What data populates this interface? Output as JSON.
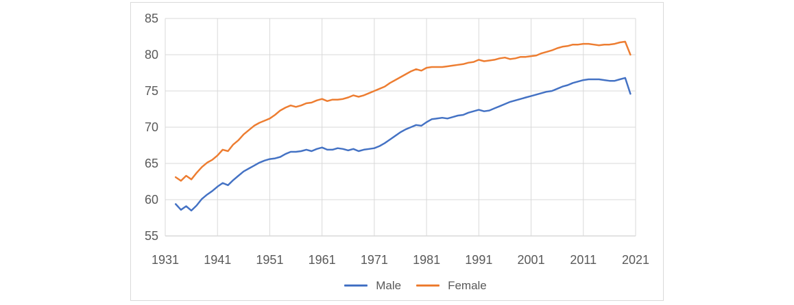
{
  "chart_data": {
    "type": "line",
    "title": "",
    "xlabel": "",
    "ylabel": "",
    "xlim": [
      1931,
      2021
    ],
    "ylim": [
      55,
      85
    ],
    "x_ticks": [
      1931,
      1941,
      1951,
      1961,
      1971,
      1981,
      1991,
      2001,
      2011,
      2021
    ],
    "y_ticks": [
      55,
      60,
      65,
      70,
      75,
      80,
      85
    ],
    "grid": true,
    "legend_position": "bottom",
    "years": [
      1933,
      1934,
      1935,
      1936,
      1937,
      1938,
      1939,
      1940,
      1941,
      1942,
      1943,
      1944,
      1945,
      1946,
      1947,
      1948,
      1949,
      1950,
      1951,
      1952,
      1953,
      1954,
      1955,
      1956,
      1957,
      1958,
      1959,
      1960,
      1961,
      1962,
      1963,
      1964,
      1965,
      1966,
      1967,
      1968,
      1969,
      1970,
      1971,
      1972,
      1973,
      1974,
      1975,
      1976,
      1977,
      1978,
      1979,
      1980,
      1981,
      1982,
      1983,
      1984,
      1985,
      1986,
      1987,
      1988,
      1989,
      1990,
      1991,
      1992,
      1993,
      1994,
      1995,
      1996,
      1997,
      1998,
      1999,
      2000,
      2001,
      2002,
      2003,
      2004,
      2005,
      2006,
      2007,
      2008,
      2009,
      2010,
      2011,
      2012,
      2013,
      2014,
      2015,
      2016,
      2017,
      2018,
      2019,
      2020
    ],
    "series": [
      {
        "name": "Male",
        "color": "#4472C4",
        "values": [
          59.4,
          58.6,
          59.1,
          58.5,
          59.2,
          60.1,
          60.7,
          61.2,
          61.8,
          62.3,
          62.0,
          62.7,
          63.3,
          63.9,
          64.3,
          64.7,
          65.1,
          65.4,
          65.6,
          65.7,
          65.9,
          66.3,
          66.6,
          66.6,
          66.7,
          66.9,
          66.7,
          67.0,
          67.2,
          66.9,
          66.9,
          67.1,
          67.0,
          66.8,
          67.0,
          66.7,
          66.9,
          67.0,
          67.1,
          67.4,
          67.8,
          68.3,
          68.8,
          69.3,
          69.7,
          70.0,
          70.3,
          70.2,
          70.7,
          71.1,
          71.2,
          71.3,
          71.2,
          71.4,
          71.6,
          71.7,
          72.0,
          72.2,
          72.4,
          72.2,
          72.3,
          72.6,
          72.9,
          73.2,
          73.5,
          73.7,
          73.9,
          74.1,
          74.3,
          74.5,
          74.7,
          74.9,
          75.0,
          75.3,
          75.6,
          75.8,
          76.1,
          76.3,
          76.5,
          76.6,
          76.6,
          76.6,
          76.5,
          76.4,
          76.4,
          76.6,
          76.8,
          74.6
        ]
      },
      {
        "name": "Female",
        "color": "#ED7D31",
        "values": [
          63.1,
          62.6,
          63.3,
          62.8,
          63.7,
          64.5,
          65.1,
          65.5,
          66.1,
          66.9,
          66.7,
          67.6,
          68.2,
          69.0,
          69.6,
          70.2,
          70.6,
          70.9,
          71.2,
          71.7,
          72.3,
          72.7,
          73.0,
          72.8,
          73.0,
          73.3,
          73.4,
          73.7,
          73.9,
          73.6,
          73.8,
          73.8,
          73.9,
          74.1,
          74.4,
          74.2,
          74.4,
          74.7,
          75.0,
          75.3,
          75.6,
          76.1,
          76.5,
          76.9,
          77.3,
          77.7,
          78.0,
          77.8,
          78.2,
          78.3,
          78.3,
          78.3,
          78.4,
          78.5,
          78.6,
          78.7,
          78.9,
          79.0,
          79.3,
          79.1,
          79.2,
          79.3,
          79.5,
          79.6,
          79.4,
          79.5,
          79.7,
          79.7,
          79.8,
          79.9,
          80.2,
          80.4,
          80.6,
          80.9,
          81.1,
          81.2,
          81.4,
          81.4,
          81.5,
          81.5,
          81.4,
          81.3,
          81.4,
          81.4,
          81.5,
          81.7,
          81.8,
          80.0
        ]
      }
    ]
  },
  "colors": {
    "gridline": "#d9d9d9",
    "axis_line": "#c6c6c6",
    "tick_label": "#595959",
    "card_border": "#d9d9d9",
    "background": "#ffffff"
  }
}
